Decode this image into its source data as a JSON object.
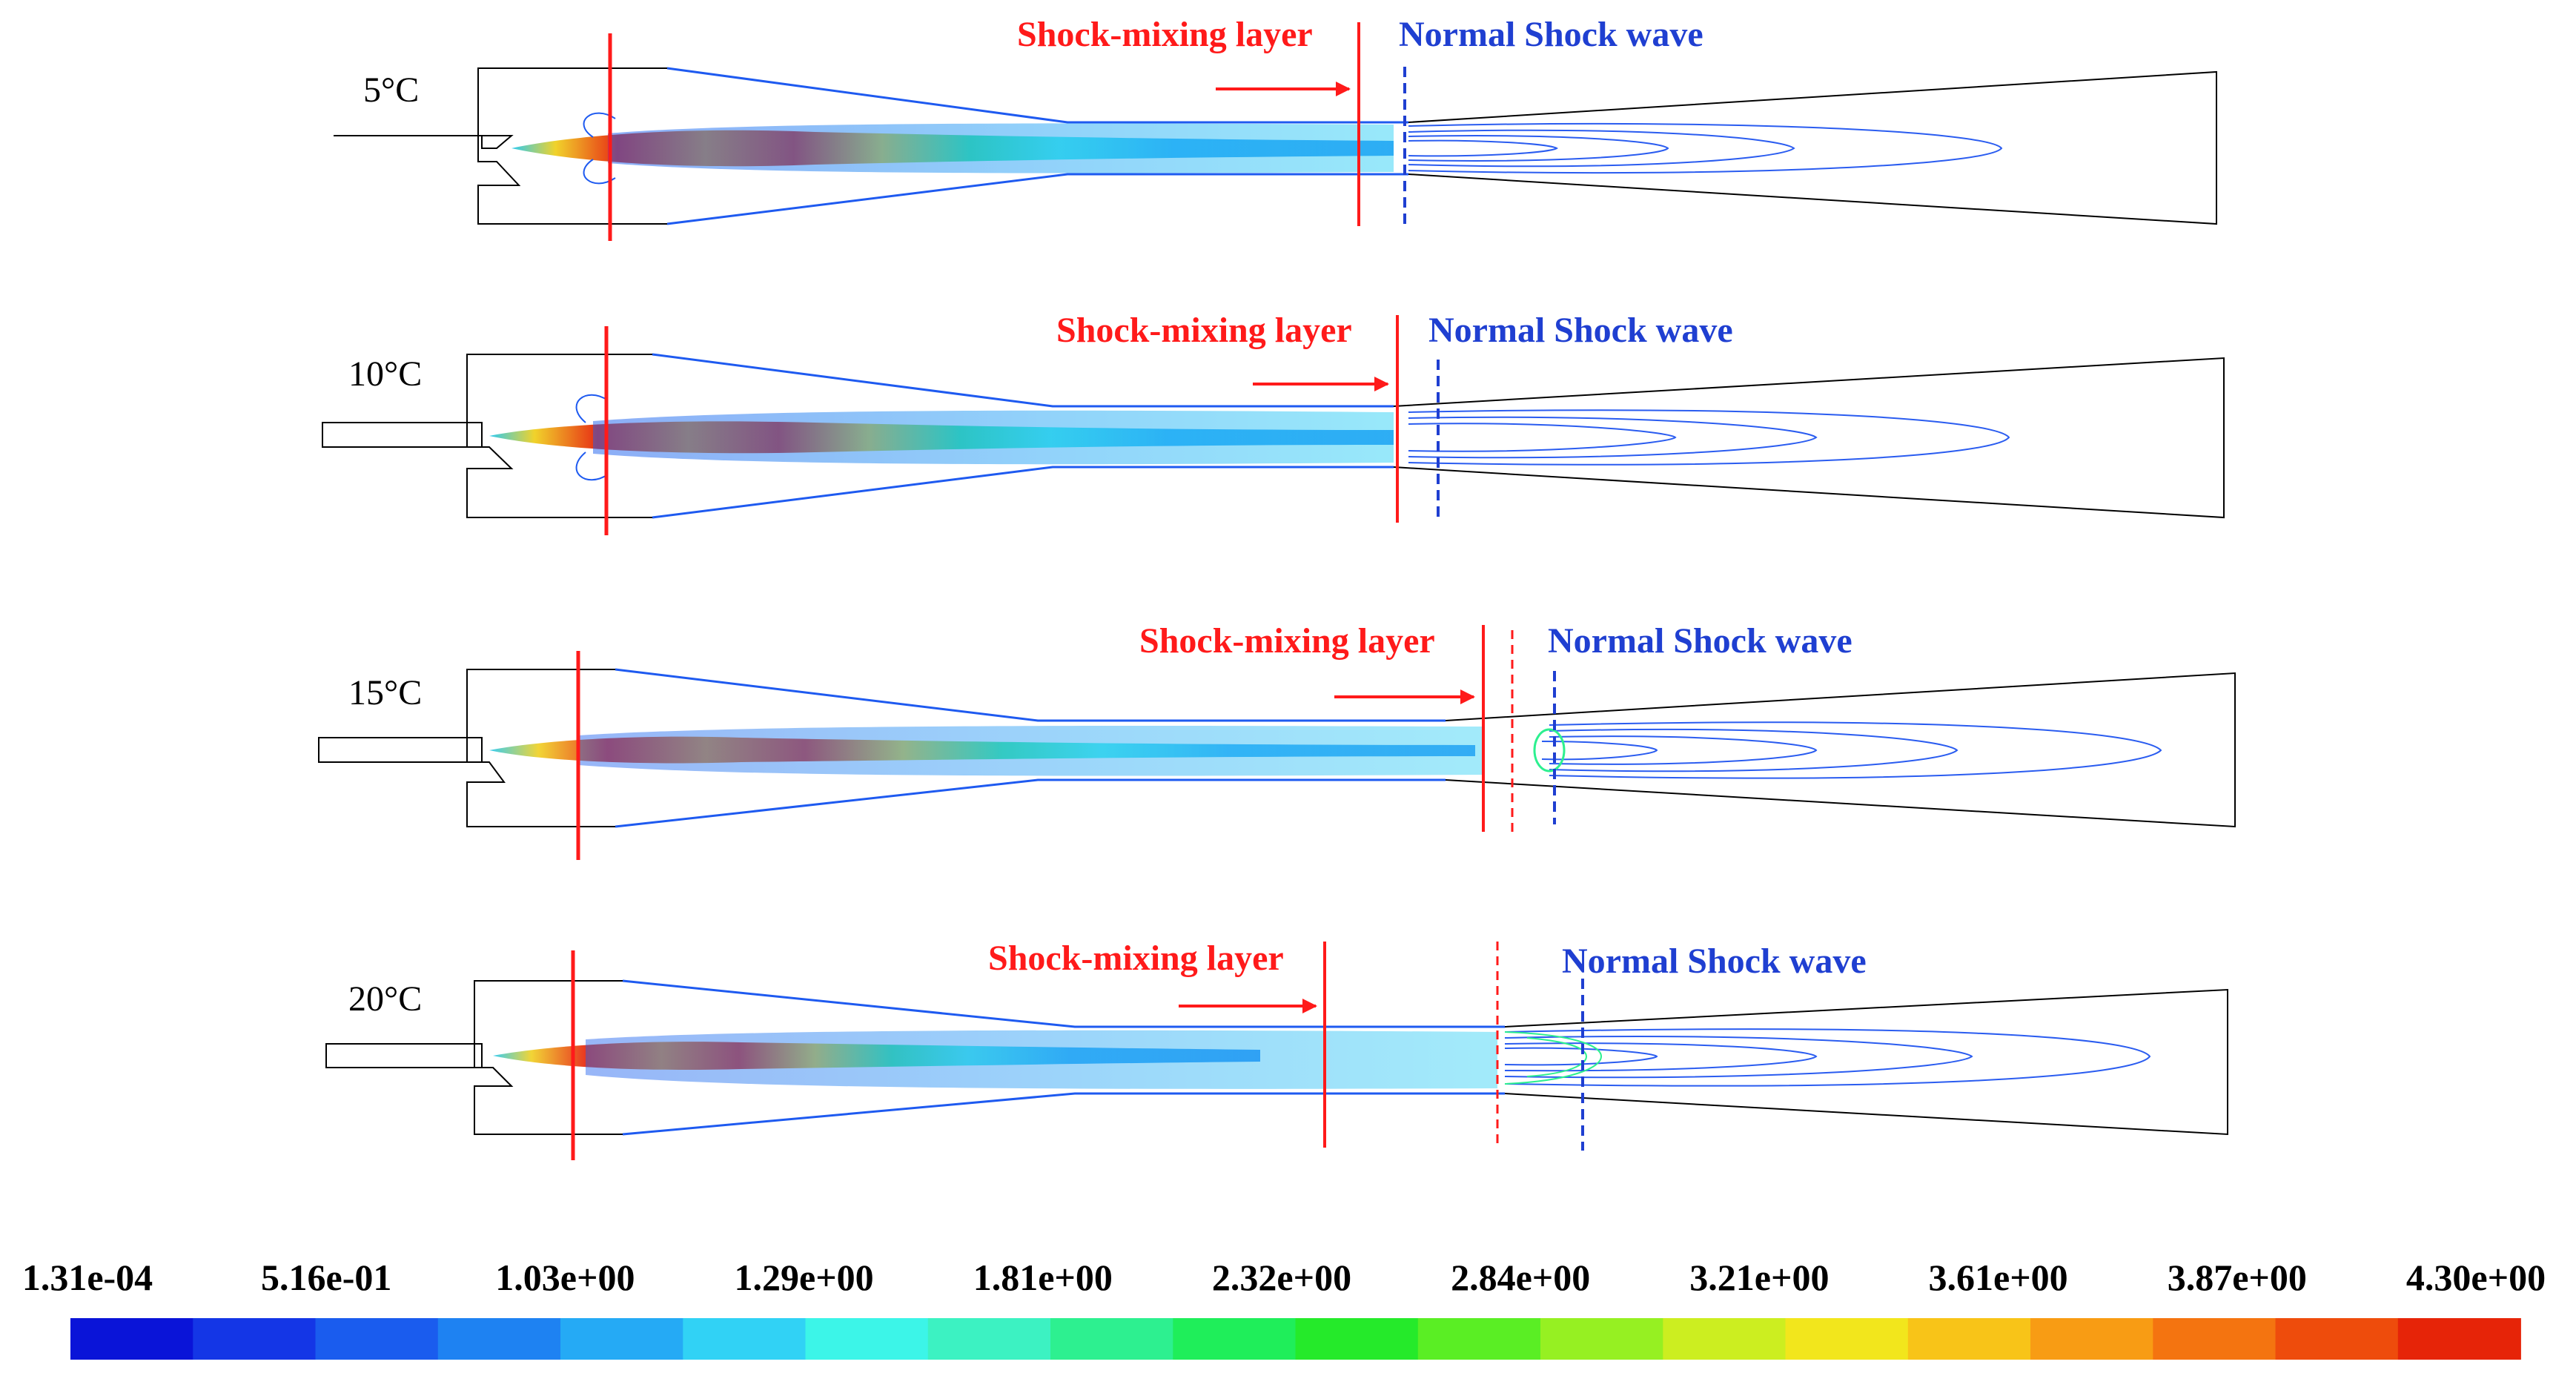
{
  "figure": {
    "panels": [
      {
        "temperature": "5°C",
        "shock_mixing_label": "Shock-mixing layer",
        "normal_shock_label": "Normal Shock wave"
      },
      {
        "temperature": "10°C",
        "shock_mixing_label": "Shock-mixing layer",
        "normal_shock_label": "Normal Shock wave"
      },
      {
        "temperature": "15°C",
        "shock_mixing_label": "Shock-mixing layer",
        "normal_shock_label": "Normal Shock wave"
      },
      {
        "temperature": "20°C",
        "shock_mixing_label": "Shock-mixing layer",
        "normal_shock_label": "Normal Shock wave"
      }
    ],
    "colorbar": {
      "tick_labels": [
        "1.31e-04",
        "5.16e-01",
        "1.03e+00",
        "1.29e+00",
        "1.81e+00",
        "2.32e+00",
        "2.84e+00",
        "3.21e+00",
        "3.61e+00",
        "3.87e+00",
        "4.30e+00"
      ],
      "colors": [
        "#0a14d8",
        "#1436e6",
        "#1a5cee",
        "#1e82f2",
        "#25aaf5",
        "#31d2f5",
        "#3cf5e8",
        "#3cf2c2",
        "#2df090",
        "#1fee5a",
        "#25ea2a",
        "#5aee24",
        "#96f022",
        "#ccee20",
        "#f2e61c",
        "#f8c418",
        "#f89c14",
        "#f47410",
        "#ee4c0c",
        "#e62408"
      ]
    },
    "colors": {
      "shock_mixing": "#ff1a1a",
      "normal_shock": "#1f3fd1",
      "outline": "#000000"
    }
  }
}
